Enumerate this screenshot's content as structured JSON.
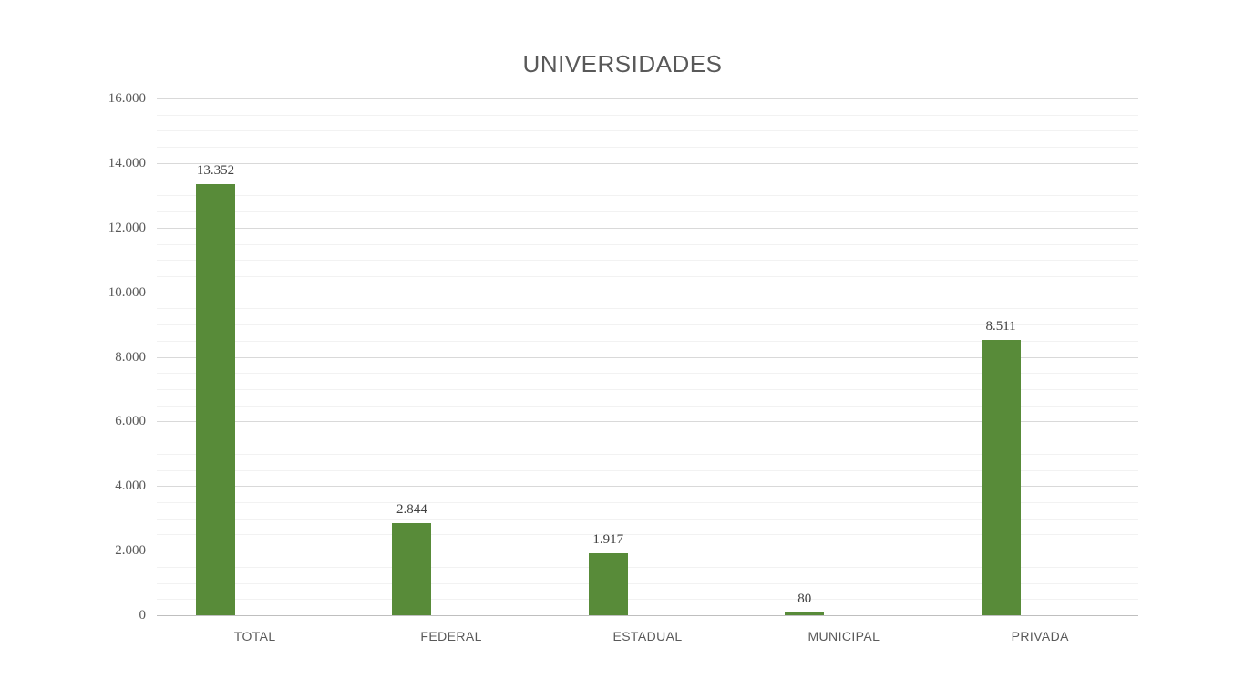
{
  "page": {
    "background": "#ffffff"
  },
  "chart_data": {
    "type": "bar",
    "title": "UNIVERSIDADES",
    "categories": [
      "TOTAL",
      "FEDERAL",
      "ESTADUAL",
      "MUNICIPAL",
      "PRIVADA"
    ],
    "values": [
      13352,
      2844,
      1917,
      80,
      8511
    ],
    "value_labels": [
      "13.352",
      "2.844",
      "1.917",
      "80",
      "8.511"
    ],
    "xlabel": "",
    "ylabel": "",
    "ylim": [
      0,
      16000
    ],
    "y_major_step": 2000,
    "y_minor_step": 500,
    "y_tick_labels": [
      "0",
      "2.000",
      "4.000",
      "6.000",
      "8.000",
      "10.000",
      "12.000",
      "14.000",
      "16.000"
    ],
    "grid": true,
    "legend": "none",
    "colors": {
      "bar": "#588b39",
      "grid_major": "#d9d9d9",
      "grid_minor": "#f2f2f2",
      "axis_line": "#bfbfbf",
      "title_text": "#595959",
      "tick_text": "#595959",
      "category_text": "#595959",
      "data_label_text": "#404040"
    }
  }
}
